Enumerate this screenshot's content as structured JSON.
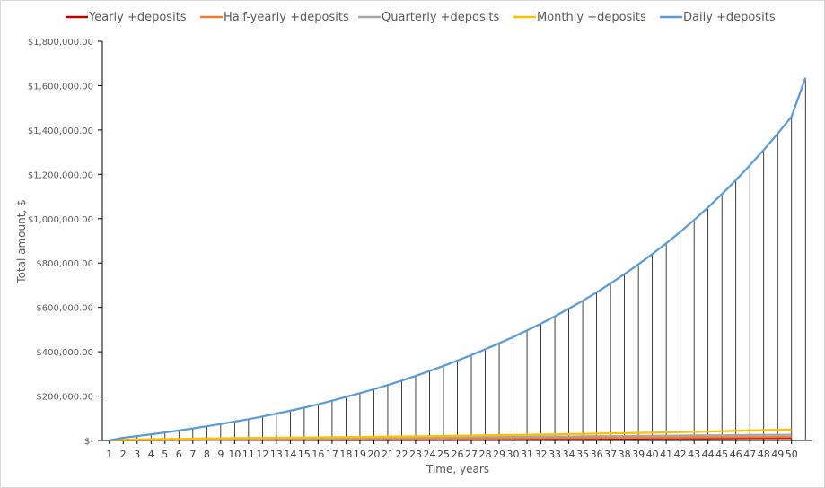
{
  "chart_data": {
    "type": "line",
    "xlabel": "Time, years",
    "ylabel": "Total amount, $",
    "ylim": [
      0,
      1800000
    ],
    "yticks": [
      0,
      200000,
      400000,
      600000,
      800000,
      1000000,
      1200000,
      1400000,
      1600000,
      1800000
    ],
    "ytick_labels": [
      "$-",
      "$200,000.00",
      "$400,000.00",
      "$600,000.00",
      "$800,000.00",
      "$1,000,000.00",
      "$1,200,000.00",
      "$1,400,000.00",
      "$1,600,000.00",
      "$1,800,000.00"
    ],
    "x": [
      1,
      2,
      3,
      4,
      5,
      6,
      7,
      8,
      9,
      10,
      11,
      12,
      13,
      14,
      15,
      16,
      17,
      18,
      19,
      20,
      21,
      22,
      23,
      24,
      25,
      26,
      27,
      28,
      29,
      30,
      31,
      32,
      33,
      34,
      35,
      36,
      37,
      38,
      39,
      40,
      41,
      42,
      43,
      44,
      45,
      46,
      47,
      48,
      49,
      50
    ],
    "x_range": [
      0.5,
      51.5
    ],
    "x_extent_end": 51,
    "legend_position": "top",
    "grid": false,
    "drop_lines": true,
    "series": [
      {
        "name": "Yearly +deposits",
        "color": "#c00000",
        "values": [
          1000,
          1100,
          1300,
          1500,
          1700,
          1900,
          2100,
          2300,
          2500,
          2700,
          2900,
          3100,
          3300,
          3500,
          3700,
          3900,
          4100,
          4300,
          4500,
          4700,
          4900,
          5100,
          5300,
          5500,
          5700,
          5900,
          6100,
          6300,
          6500,
          6700,
          6900,
          7100,
          7300,
          7500,
          7700,
          7900,
          8100,
          8300,
          8500,
          8700,
          8900,
          9100,
          9300,
          9500,
          9700,
          9900,
          10100,
          10300,
          10500,
          10700
        ]
      },
      {
        "name": "Half-yearly +deposits",
        "color": "#ed7d31",
        "values": [
          1200,
          1500,
          1800,
          2100,
          2400,
          2700,
          3000,
          3300,
          3600,
          3900,
          4200,
          4500,
          4800,
          5100,
          5400,
          5700,
          6000,
          6300,
          6600,
          6900,
          7200,
          7500,
          7800,
          8100,
          8400,
          8700,
          9000,
          9300,
          9600,
          9900,
          10200,
          10500,
          10800,
          11100,
          11400,
          11700,
          12000,
          12300,
          12600,
          12900,
          13200,
          13500,
          13800,
          14100,
          14400,
          14700,
          15000,
          15300,
          15600,
          15900
        ]
      },
      {
        "name": "Quarterly +deposits",
        "color": "#a5a5a5",
        "values": [
          1500,
          2000,
          2500,
          3000,
          3500,
          4000,
          4500,
          5000,
          5500,
          6000,
          6500,
          7000,
          7500,
          8000,
          8500,
          9000,
          9500,
          10000,
          10500,
          11000,
          11500,
          12000,
          12500,
          13000,
          13500,
          14000,
          14500,
          15000,
          15500,
          16000,
          16500,
          17000,
          17500,
          18000,
          18500,
          19000,
          19500,
          20000,
          20500,
          21000,
          21500,
          22000,
          22500,
          23000,
          23500,
          24000,
          24500,
          25000,
          25500,
          26000
        ]
      },
      {
        "name": "Monthly +deposits",
        "color": "#ffc000",
        "values": [
          2000,
          3200,
          4400,
          5500,
          6500,
          7400,
          8200,
          9000,
          9700,
          10400,
          11000,
          11600,
          12200,
          12800,
          13400,
          14000,
          14600,
          15200,
          15900,
          16600,
          17300,
          18000,
          18800,
          19600,
          20400,
          21200,
          22000,
          22900,
          23800,
          24700,
          25600,
          26600,
          27600,
          28600,
          29600,
          30700,
          31800,
          32900,
          34000,
          35200,
          36400,
          37700,
          39000,
          40400,
          41800,
          43300,
          44800,
          46400,
          48000,
          49700
        ]
      },
      {
        "name": "Daily +deposits",
        "color": "#5b9bd5",
        "values": [
          1000,
          12000,
          20000,
          28000,
          36000,
          45000,
          54000,
          64000,
          74000,
          85000,
          96000,
          108000,
          121000,
          134000,
          148000,
          163000,
          179000,
          196000,
          213000,
          231000,
          250000,
          270000,
          291000,
          313000,
          336000,
          360000,
          385000,
          411000,
          438000,
          466000,
          496000,
          527000,
          560000,
          594000,
          630000,
          668000,
          708000,
          750000,
          794000,
          840000,
          889000,
          940000,
          994000,
          1051000,
          1111000,
          1174000,
          1240000,
          1310000,
          1383000,
          1460000
        ],
        "end_value": 1635000
      }
    ]
  }
}
